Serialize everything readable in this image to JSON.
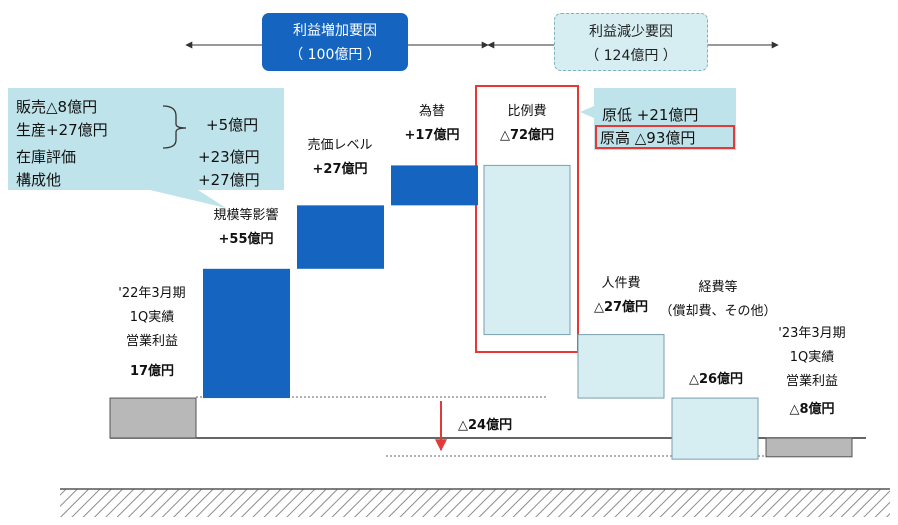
{
  "headers": {
    "increase": {
      "title": "利益増加要因",
      "amount": "（ 100億円 ）"
    },
    "decrease": {
      "title": "利益減少要因",
      "amount": "（ 124億円 ）"
    }
  },
  "callouts": {
    "scale_breakdown": [
      {
        "label": "販売△8億円",
        "value": ""
      },
      {
        "label": "生産+27億円",
        "value": "+5億円"
      },
      {
        "label": "在庫評価",
        "value": "+23億円"
      },
      {
        "label": "構成他",
        "value": "+27億円"
      }
    ],
    "variable_cost": {
      "low": "原低 +21億円",
      "high": "原高 △93億円"
    }
  },
  "bars": [
    {
      "name": "'22年3月期 1Q実績 営業利益",
      "lines": [
        "'22年3月期",
        "1Q実績",
        "営業利益"
      ],
      "value_label": "17億円"
    },
    {
      "name": "規模等影響",
      "lines": [
        "規模等影響"
      ],
      "value_label": "+55億円"
    },
    {
      "name": "売価レベル",
      "lines": [
        "売価レベル"
      ],
      "value_label": "+27億円"
    },
    {
      "name": "為替",
      "lines": [
        "為替"
      ],
      "value_label": "+17億円"
    },
    {
      "name": "比例費",
      "lines": [
        "比例費"
      ],
      "value_label": "△72億円"
    },
    {
      "name": "人件費",
      "lines": [
        "人件費"
      ],
      "value_label": "△27億円"
    },
    {
      "name": "経費等",
      "lines": [
        "経費等",
        "（償却費、その他）"
      ],
      "value_label": "△26億円"
    },
    {
      "name": "'23年3月期 1Q実績 営業利益",
      "lines": [
        "'23年3月期",
        "1Q実績",
        "営業利益"
      ],
      "value_label": "△8億円"
    }
  ],
  "difference_label": "△24億円",
  "colors": {
    "increase": "#1565c0",
    "decrease": "#d6eef2",
    "total": "#b8b8b8",
    "highlight": "#e53935"
  },
  "chart_data": {
    "type": "waterfall",
    "categories": [
      "'22年3月期 1Q実績 営業利益",
      "規模等影響",
      "売価レベル",
      "為替",
      "比例費",
      "人件費",
      "経費等",
      "'23年3月期 1Q実績 営業利益"
    ],
    "values": [
      17,
      55,
      27,
      17,
      -72,
      -27,
      -26,
      -8
    ],
    "kinds": [
      "total",
      "delta",
      "delta",
      "delta",
      "delta",
      "delta",
      "delta",
      "total"
    ],
    "units": "億円",
    "difference": -24
  }
}
